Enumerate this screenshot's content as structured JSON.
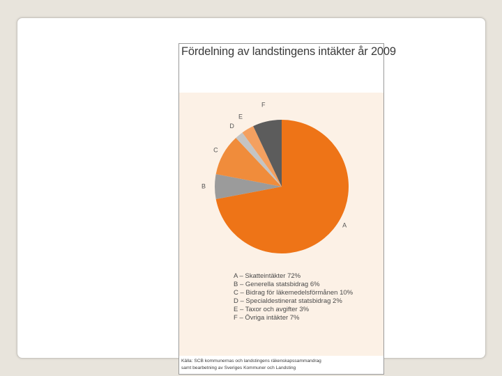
{
  "chart_data": {
    "type": "pie",
    "title": "Fördelning av landstingens intäkter år 2009",
    "slices": [
      {
        "label": "A",
        "value": 72,
        "color": "#ee7417",
        "legend": "A – Skatteintäkter 72%"
      },
      {
        "label": "B",
        "value": 6,
        "color": "#9b9b9b",
        "legend": "B – Generella statsbidrag 6%"
      },
      {
        "label": "C",
        "value": 10,
        "color": "#f08c3b",
        "legend": "C – Bidrag för läkemedelsförmånen 10%"
      },
      {
        "label": "D",
        "value": 2,
        "color": "#c4c4c4",
        "legend": "D – Specialdestinerat statsbidrag 2%"
      },
      {
        "label": "E",
        "value": 3,
        "color": "#f4a060",
        "legend": "E – Taxor och avgifter 3%"
      },
      {
        "label": "F",
        "value": 7,
        "color": "#5c5c5c",
        "legend": "F – Övriga intäkter 7%"
      }
    ],
    "source": [
      "Källa: SCB kommunernas och landstingens räkenskapssammandrag",
      "samt bearbetning av Sveriges Kommuner och Landsting"
    ]
  }
}
